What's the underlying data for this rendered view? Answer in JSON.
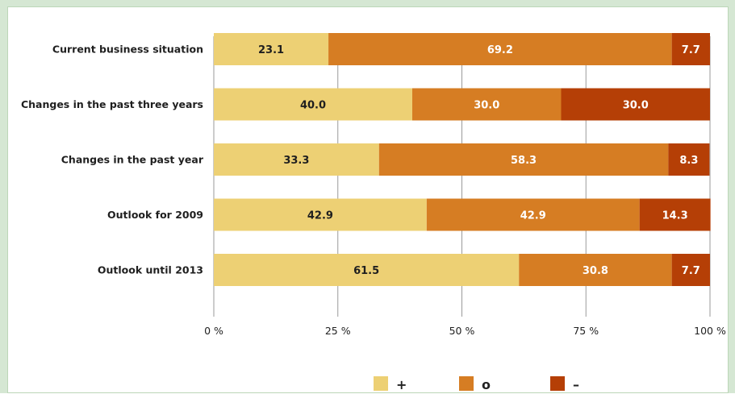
{
  "chart_data": {
    "type": "bar",
    "orientation": "horizontal",
    "stacked": true,
    "categories": [
      "Current business situation",
      "Changes in the past three years",
      "Changes in the past year",
      "Outlook for 2009",
      "Outlook until 2013"
    ],
    "series": [
      {
        "name": "+",
        "color": "#edd074",
        "label_color": "#1f1f1f",
        "values": [
          23.1,
          40.0,
          33.3,
          42.9,
          61.5
        ]
      },
      {
        "name": "o",
        "color": "#d67d23",
        "label_color": "#ffffff",
        "values": [
          69.2,
          30.0,
          58.3,
          42.9,
          30.8
        ]
      },
      {
        "name": "–",
        "color": "#b53f06",
        "label_color": "#ffffff",
        "values": [
          7.7,
          30.0,
          8.3,
          14.3,
          7.7
        ]
      }
    ],
    "value_labels": [
      [
        "23.1",
        "40.0",
        "33.3",
        "42.9",
        "61.5"
      ],
      [
        "69.2",
        "30.0",
        "58.3",
        "42.9",
        "30.8"
      ],
      [
        "7.7",
        "30.0",
        "8.3",
        "14.3",
        "7.7"
      ]
    ],
    "xaxis": {
      "ticks": [
        0,
        25,
        50,
        75,
        100
      ],
      "tick_labels": [
        "0 %",
        "25 %",
        "50 %",
        "75 %",
        "100 %"
      ],
      "range": [
        0,
        100
      ]
    },
    "grid": "vertical",
    "legend": {
      "placement": "bottom-center"
    },
    "frame_color": "#d5e7d3"
  }
}
